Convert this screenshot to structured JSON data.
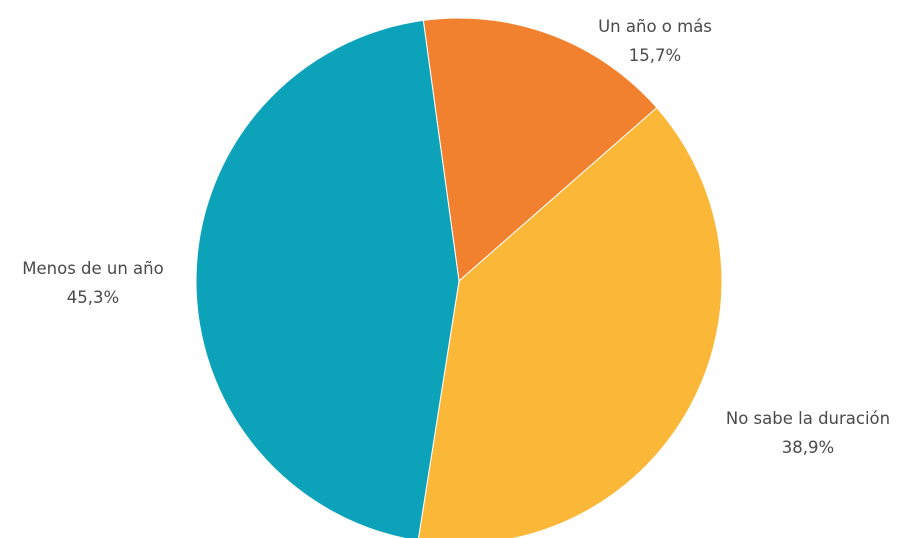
{
  "chart_data": {
    "type": "pie",
    "title": "",
    "slices": [
      {
        "label": "Un año o más",
        "value": 15.7,
        "value_label": "15,7%",
        "color": "#F2812F"
      },
      {
        "label": "No sabe la duración",
        "value": 38.9,
        "value_label": "38,9%",
        "color": "#FBB738"
      },
      {
        "label": "Menos de un año",
        "value": 45.3,
        "value_label": "45,3%",
        "color": "#0BA2BA"
      }
    ]
  }
}
